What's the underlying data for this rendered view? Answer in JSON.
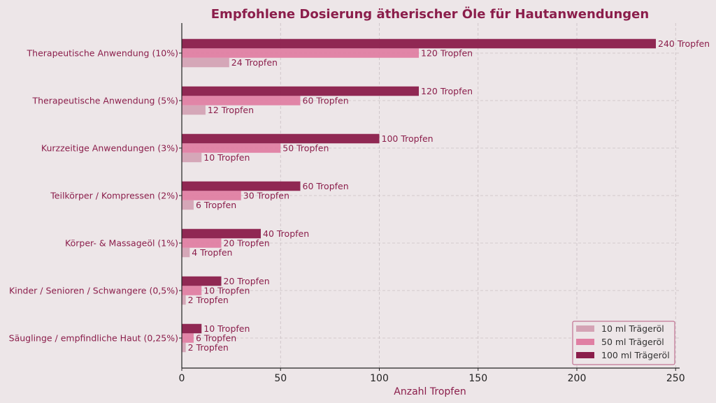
{
  "colors": {
    "background": "#ede6e8",
    "title": "#8b1e4b",
    "series_10ml": "#d4a3b5",
    "series_50ml": "#e07fa3",
    "series_100ml": "#8b1e4b",
    "grid": "#c9c0c3",
    "legend_border": "#b85a80"
  },
  "chart_data": {
    "type": "bar",
    "orientation": "horizontal",
    "title": "Empfohlene Dosierung ätherischer Öle für Hautanwendungen",
    "xlabel": "Anzahl Tropfen",
    "ylabel": "",
    "xlim": [
      0,
      252
    ],
    "xticks": [
      0,
      50,
      100,
      150,
      200,
      250
    ],
    "grid": true,
    "legend_position": "lower right",
    "categories": [
      "Therapeutische Anwendung (10%)",
      "Therapeutische Anwendung (5%)",
      "Kurzzeitige Anwendungen (3%)",
      "Teilkörper / Kompressen (2%)",
      "Körper- & Massageöl (1%)",
      "Kinder / Senioren / Schwangere (0,5%)",
      "Säuglinge / empfindliche Haut (0,25%)"
    ],
    "series": [
      {
        "name": "10 ml Trägeröl",
        "values": [
          24,
          12,
          10,
          6,
          4,
          2,
          2
        ],
        "labels": [
          "24 Tropfen",
          "12 Tropfen",
          "10 Tropfen",
          "6 Tropfen",
          "4 Tropfen",
          "2 Tropfen",
          "2 Tropfen"
        ]
      },
      {
        "name": "50 ml Trägeröl",
        "values": [
          120,
          60,
          50,
          30,
          20,
          10,
          6
        ],
        "labels": [
          "120 Tropfen",
          "60 Tropfen",
          "50 Tropfen",
          "30 Tropfen",
          "20 Tropfen",
          "10 Tropfen",
          "6 Tropfen"
        ]
      },
      {
        "name": "100 ml Trägeröl",
        "values": [
          240,
          120,
          100,
          60,
          40,
          20,
          10
        ],
        "labels": [
          "240 Tropfen",
          "120 Tropfen",
          "100 Tropfen",
          "60 Tropfen",
          "40 Tropfen",
          "20 Tropfen",
          "10 Tropfen"
        ]
      }
    ]
  }
}
